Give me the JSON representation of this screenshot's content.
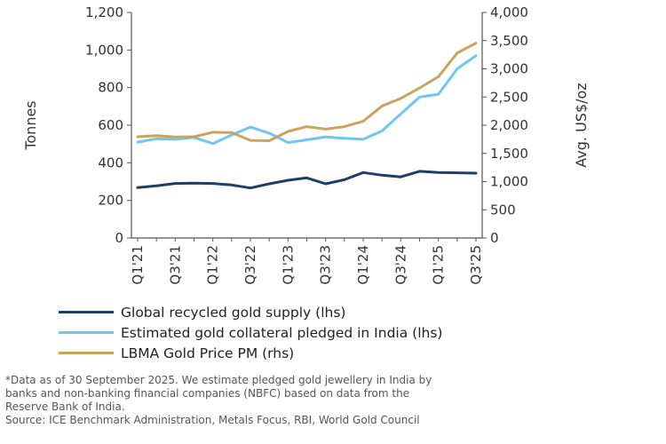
{
  "chart_data": {
    "type": "line",
    "title": "",
    "xlabel": "",
    "ylabel": "Tonnes",
    "y2label": "Avg. US$/oz",
    "ylim": [
      0,
      1200
    ],
    "y2lim": [
      0,
      4000
    ],
    "yticks": [
      "0",
      "200",
      "400",
      "600",
      "800",
      "1,000",
      "1,200"
    ],
    "y2ticks": [
      "0",
      "500",
      "1,000",
      "1,500",
      "2,000",
      "2,500",
      "3,000",
      "3,500",
      "4,000"
    ],
    "categories": [
      "Q1'21",
      "Q2'21",
      "Q3'21",
      "Q4'21",
      "Q1'22",
      "Q2'22",
      "Q3'22",
      "Q4'22",
      "Q1'23",
      "Q2'23",
      "Q3'23",
      "Q4'23",
      "Q1'24",
      "Q2'24",
      "Q3'24",
      "Q4'24",
      "Q1'25",
      "Q2'25",
      "Q3'25"
    ],
    "tick_labels": [
      "Q1'21",
      "",
      "Q3'21",
      "",
      "Q1'22",
      "",
      "Q3'22",
      "",
      "Q1'23",
      "",
      "Q3'23",
      "",
      "Q1'24",
      "",
      "Q3'24",
      "",
      "Q1'25",
      "",
      "Q3'25"
    ],
    "series": [
      {
        "name": "Global recycled gold supply (lhs)",
        "axis": "left",
        "color": "#1b3f66",
        "values": [
          268,
          278,
          290,
          292,
          290,
          282,
          266,
          288,
          307,
          320,
          288,
          310,
          348,
          334,
          325,
          355,
          348,
          347,
          345
        ]
      },
      {
        "name": "Estimated gold collateral pledged in India (lhs)",
        "axis": "left",
        "color": "#6ec6f2",
        "values": [
          510,
          528,
          525,
          535,
          502,
          548,
          590,
          558,
          508,
          522,
          538,
          530,
          525,
          570,
          660,
          750,
          765,
          900,
          970
        ]
      },
      {
        "name": "LBMA Gold Price PM (rhs)",
        "axis": "right",
        "color": "#c9a45c",
        "values": [
          1795,
          1815,
          1790,
          1795,
          1875,
          1870,
          1730,
          1725,
          1890,
          1975,
          1930,
          1975,
          2070,
          2340,
          2475,
          2660,
          2860,
          3280,
          3455
        ]
      }
    ]
  },
  "notes": [
    "*Data as of 30 September 2025. We estimate pledged gold jewellery in India by",
    "banks and non-banking financial companies (NBFC) based on data from the",
    "Reserve Bank of India."
  ],
  "source": "Source: ICE Benchmark Administration, Metals Focus, RBI, World Gold Council"
}
